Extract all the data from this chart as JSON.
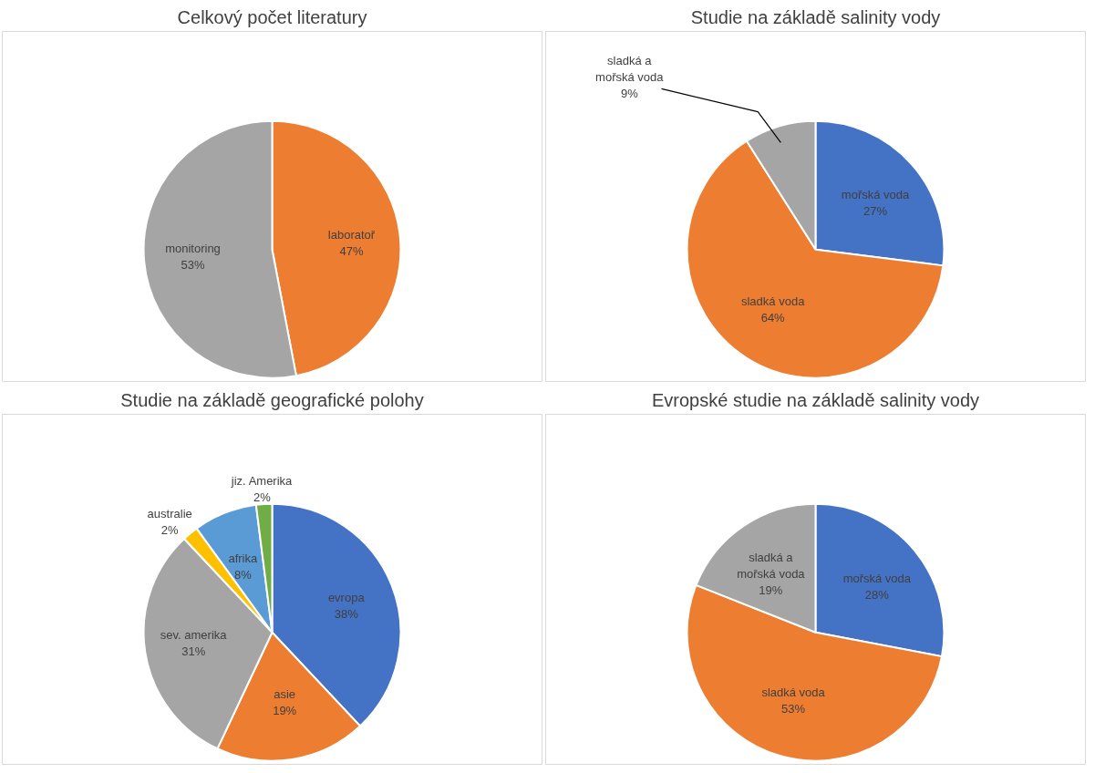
{
  "chart_data": [
    {
      "type": "pie",
      "title": "Celkový počet literatury",
      "categories": [
        "laboratoř",
        "monitoring"
      ],
      "values": [
        47,
        53
      ],
      "value_labels": [
        "47%",
        "53%"
      ],
      "colors": [
        "#ed7d31",
        "#a5a5a5"
      ]
    },
    {
      "type": "pie",
      "title": "Studie na základě salinity vody",
      "categories": [
        "mořská voda",
        "sladká voda",
        "sladká a mořská voda"
      ],
      "values": [
        27,
        64,
        9
      ],
      "value_labels": [
        "27%",
        "64%",
        "9%"
      ],
      "colors": [
        "#4472c4",
        "#ed7d31",
        "#a5a5a5"
      ]
    },
    {
      "type": "pie",
      "title": "Studie na základě geografické polohy",
      "categories": [
        "evropa",
        "asie",
        "sev. amerika",
        "australie",
        "afrika",
        "jiz. Amerika"
      ],
      "values": [
        38,
        19,
        31,
        2,
        8,
        2
      ],
      "value_labels": [
        "38%",
        "19%",
        "31%",
        "2%",
        "8%",
        "2%"
      ],
      "colors": [
        "#4472c4",
        "#ed7d31",
        "#a5a5a5",
        "#ffc000",
        "#5b9bd5",
        "#70ad47"
      ]
    },
    {
      "type": "pie",
      "title": "Evropské studie na základě salinity vody",
      "categories": [
        "mořská voda",
        "sladká voda",
        "sladká a mořská voda"
      ],
      "values": [
        28,
        53,
        19
      ],
      "value_labels": [
        "28%",
        "53%",
        "19%"
      ],
      "colors": [
        "#4472c4",
        "#ed7d31",
        "#a5a5a5"
      ]
    }
  ]
}
